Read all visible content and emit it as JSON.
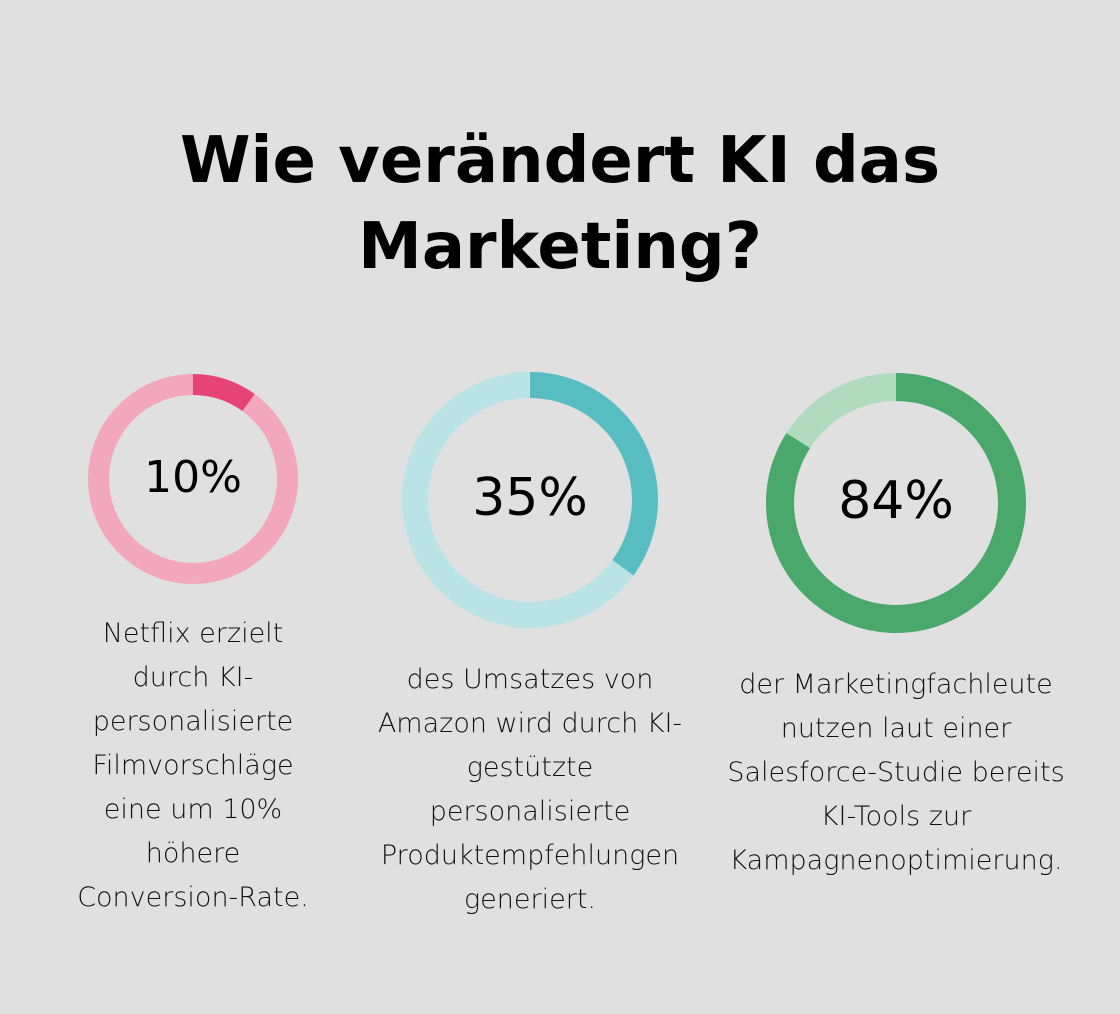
{
  "title_line1": "Wie verändert KI das",
  "title_line2": "Marketing?",
  "chart_data": {
    "type": "donut",
    "title": "Wie verändert KI das Marketing?",
    "items": [
      {
        "value": 10,
        "label": "10%",
        "description": "Netflix erzielt durch KI-personalisierte Filmvorschläge eine um 10% höhere Conversion-Rate.",
        "color": "#e64377",
        "track_color": "#f3a7bf"
      },
      {
        "value": 35,
        "label": "35%",
        "description": "des Umsatzes von Amazon wird durch KI-gestützte personalisierte Produktempfehlungen generiert.",
        "color": "#58bdc3",
        "track_color": "#b9e3e5"
      },
      {
        "value": 84,
        "label": "84%",
        "description": "der Marketingfachleute nutzen laut einer Salesforce-Studie bereits KI-Tools zur Kampagnenoptimierung.",
        "color": "#4ba86c",
        "track_color": "#b1dbbf"
      }
    ]
  }
}
